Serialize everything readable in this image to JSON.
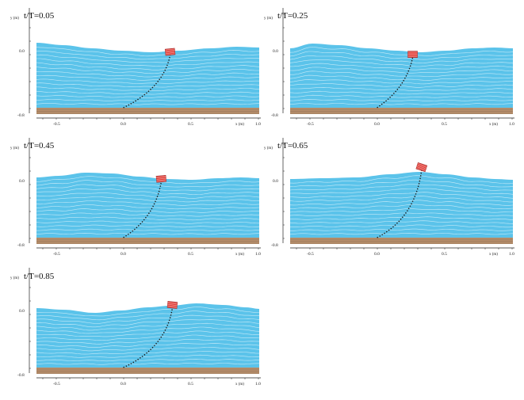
{
  "axes": {
    "y_label": "y (m)",
    "x_label": "x (m)",
    "x_ticks": [
      "-0.5",
      "0.0",
      "0.5",
      "1.0"
    ],
    "y_ticks": [
      "0.0",
      "-0.8"
    ]
  },
  "panels": [
    {
      "title": "t/T=0.05"
    },
    {
      "title": "t/T=0.25"
    },
    {
      "title": "t/T=0.45"
    },
    {
      "title": "t/T=0.65"
    },
    {
      "title": "t/T=0.85"
    }
  ],
  "colors": {
    "water": "#5bc3ea",
    "water_line": "#eaf7fd",
    "seabed": "#b88f6c",
    "seabed_line": "#8a6a4f",
    "buoy": "#e0413c",
    "mooring": "#1a1a1a"
  }
}
